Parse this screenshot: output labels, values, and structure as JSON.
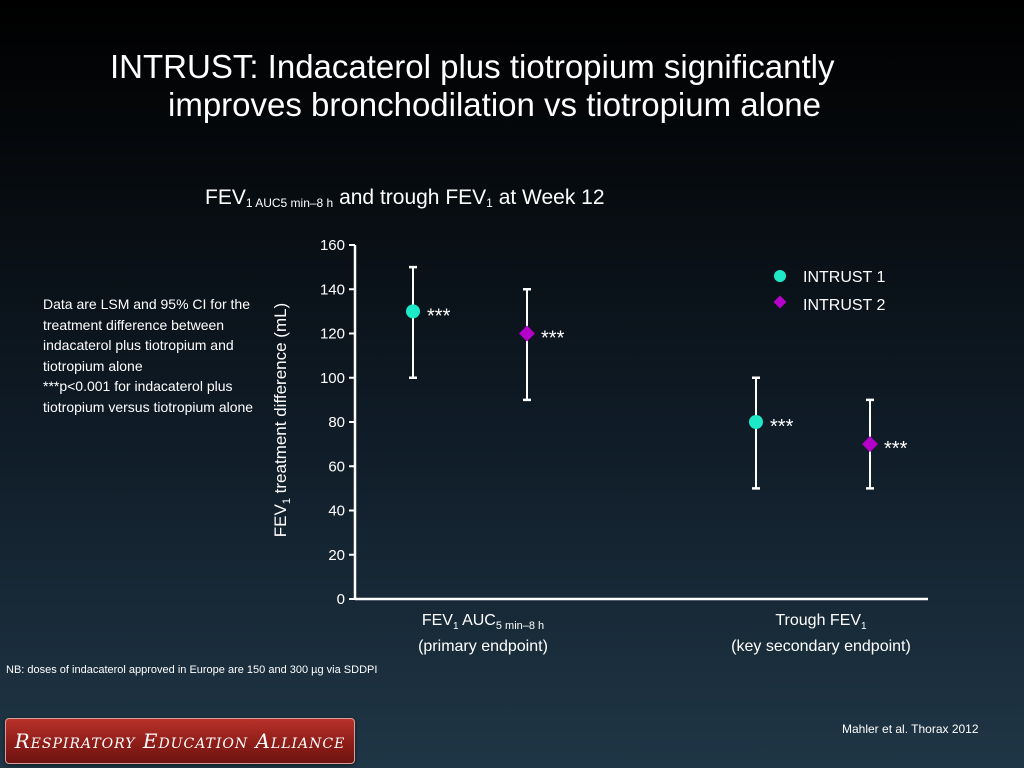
{
  "slide": {
    "title_line1": "INTRUST: Indacaterol plus tiotropium significantly",
    "title_line2": "improves bronchodilation vs tiotropium alone",
    "chart_title": {
      "part1": "FEV",
      "sub1": "1 AUC5 min–8 h",
      "part2": " and trough FEV",
      "sub2": "1",
      "part3": " at Week 12"
    },
    "note_line1": "Data are LSM and 95% CI for the treatment difference between indacaterol plus tiotropium and tiotropium alone",
    "note_line2": "***p<0.001 for indacaterol plus tiotropium versus tiotropium alone",
    "footnote": "NB: doses of indacaterol approved in Europe are 150 and 300 µg via SDDPI",
    "citation": "Mahler et al. Thorax 2012",
    "logo_text": "Respiratory Education Alliance"
  },
  "chart_data": {
    "type": "scatter",
    "ylabel": "FEV1 treatment difference (mL)",
    "ylabel_main": "FEV",
    "ylabel_sub": "1",
    "ylabel_rest": " treatment difference (mL)",
    "ylim": [
      0,
      160
    ],
    "yticks": [
      0,
      20,
      40,
      60,
      80,
      100,
      120,
      140,
      160
    ],
    "categories": [
      {
        "line1_main": "FEV",
        "line1_sub": "1",
        "line1_mid": " AUC",
        "line1_sub2": "5 min–8 h",
        "line2": "(primary endpoint)"
      },
      {
        "line1_main": "Trough FEV",
        "line1_sub": "1",
        "line1_mid": "",
        "line1_sub2": "",
        "line2": "(key secondary endpoint)"
      }
    ],
    "series": [
      {
        "name": "INTRUST 1",
        "marker": "circle",
        "color": "#1de9c9",
        "values": [
          130,
          80
        ],
        "lower": [
          100,
          50
        ],
        "upper": [
          150,
          100
        ],
        "annotations": [
          "***",
          "***"
        ]
      },
      {
        "name": "INTRUST 2",
        "marker": "diamond",
        "color": "#b400c8",
        "values": [
          120,
          70
        ],
        "lower": [
          90,
          50
        ],
        "upper": [
          140,
          90
        ],
        "annotations": [
          "***",
          "***"
        ]
      }
    ],
    "legend_position": "top-right",
    "grid": false
  }
}
